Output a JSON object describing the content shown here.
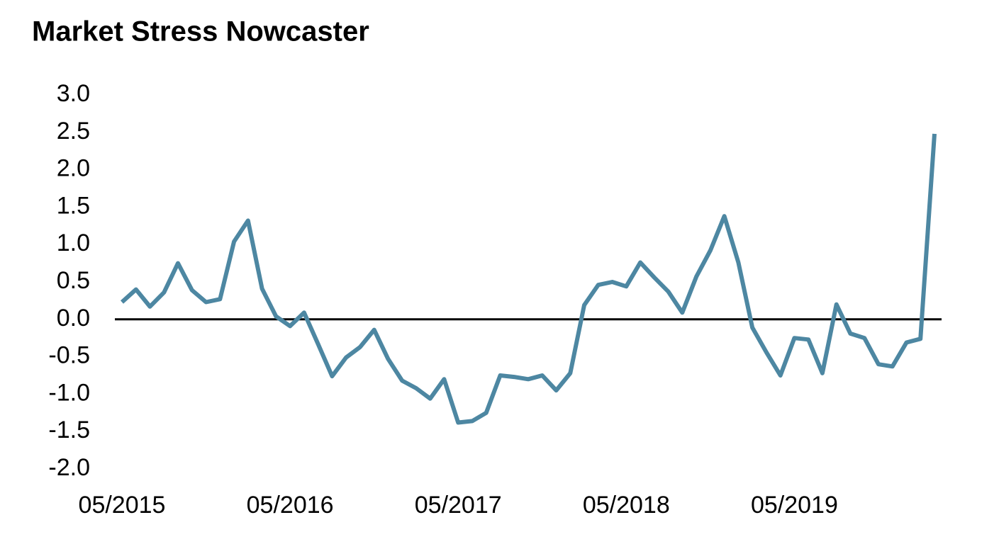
{
  "chart_data": {
    "type": "line",
    "title": "Market Stress Nowcaster",
    "categories": [
      "05/2015",
      null,
      null,
      null,
      null,
      null,
      null,
      null,
      null,
      null,
      null,
      null,
      "05/2016",
      null,
      null,
      null,
      null,
      null,
      null,
      null,
      null,
      null,
      null,
      null,
      "05/2017",
      null,
      null,
      null,
      null,
      null,
      null,
      null,
      null,
      null,
      null,
      null,
      "05/2018",
      null,
      null,
      null,
      null,
      null,
      null,
      null,
      null,
      null,
      null,
      null,
      "05/2019",
      null,
      null,
      null,
      null,
      null,
      null,
      null,
      null,
      null,
      null
    ],
    "series": [
      {
        "color": "#4d87a2",
        "values": [
          0.23,
          0.4,
          0.17,
          0.36,
          0.75,
          0.39,
          0.23,
          0.27,
          1.04,
          1.32,
          0.41,
          0.04,
          -0.09,
          0.09,
          -0.33,
          -0.76,
          -0.51,
          -0.37,
          -0.14,
          -0.53,
          -0.82,
          -0.92,
          -1.06,
          -0.8,
          -1.38,
          -1.36,
          -1.25,
          -0.75,
          -0.77,
          -0.8,
          -0.75,
          -0.95,
          -0.72,
          0.19,
          0.46,
          0.5,
          0.44,
          0.76,
          0.56,
          0.37,
          0.09,
          0.57,
          0.92,
          1.38,
          0.76,
          -0.11,
          -0.44,
          -0.75,
          -0.25,
          -0.27,
          -0.72,
          0.2,
          -0.19,
          -0.25,
          -0.6,
          -0.63,
          -0.31,
          -0.26,
          2.48
        ]
      }
    ],
    "ylim": [
      -2,
      3
    ],
    "yticks": [
      {
        "value": 3,
        "label": "3.0"
      },
      {
        "value": 2.5,
        "label": "2.5"
      },
      {
        "value": 2,
        "label": "2.0"
      },
      {
        "value": 1.5,
        "label": "1.5"
      },
      {
        "value": 1,
        "label": "1.0"
      },
      {
        "value": 0.5,
        "label": "0.5"
      },
      {
        "value": 0,
        "label": "0.0"
      },
      {
        "value": -0.5,
        "label": "-0.5"
      },
      {
        "value": -1,
        "label": "-1.0"
      },
      {
        "value": -1.5,
        "label": "-1.5"
      },
      {
        "value": -2,
        "label": "-2.0"
      }
    ],
    "zero_line": true
  }
}
